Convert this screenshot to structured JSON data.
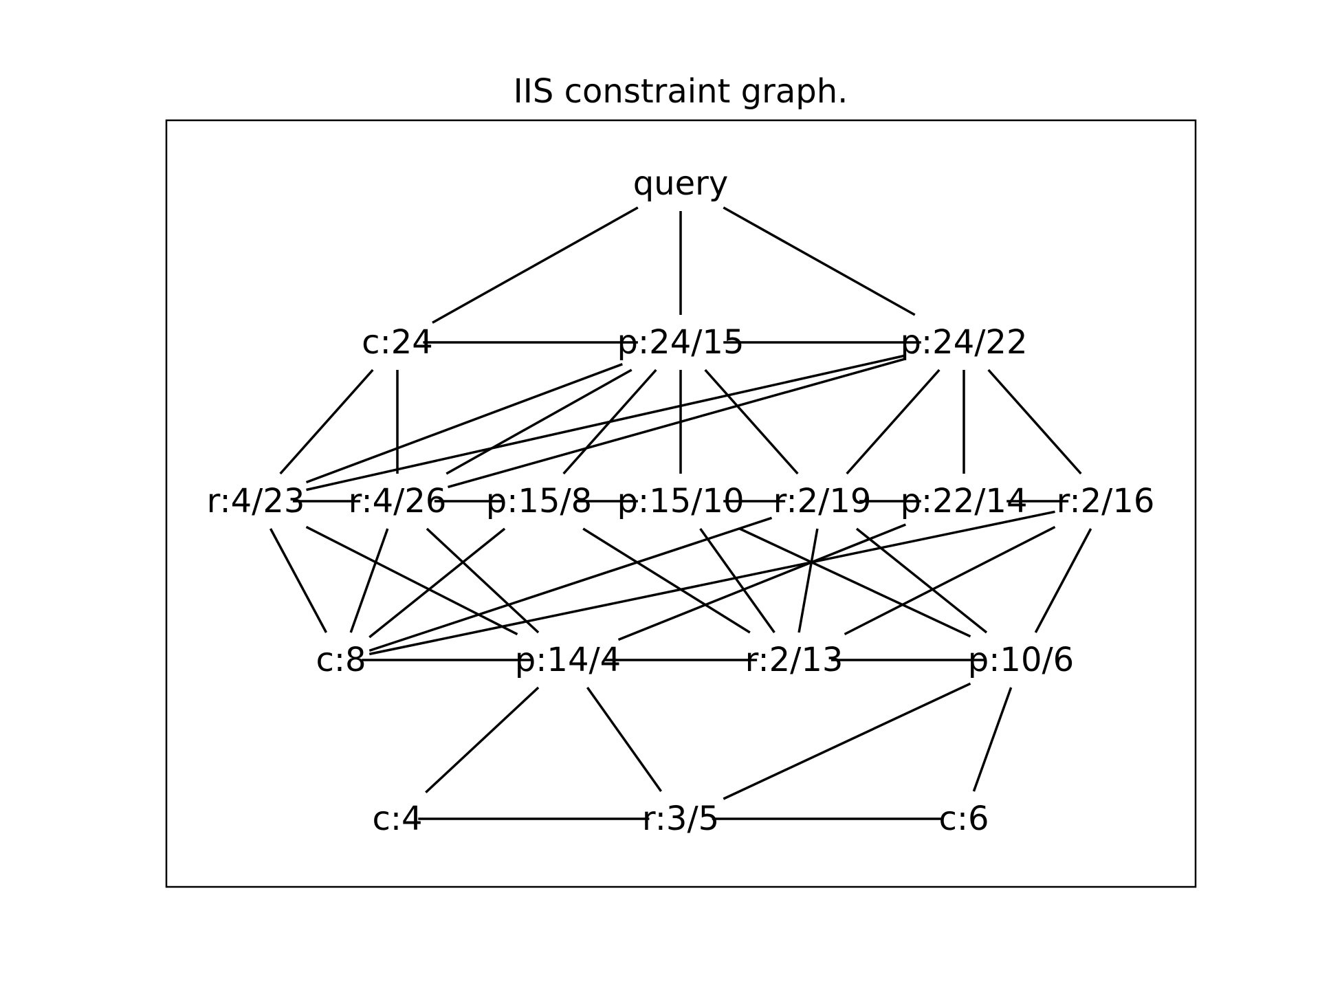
{
  "title": "IIS constraint graph.",
  "colors": {
    "background": "#ffffff",
    "line": "#000000",
    "text": "#000000"
  },
  "graph": {
    "nodes": [
      {
        "id": "query",
        "label": "query"
      },
      {
        "id": "c24",
        "label": "c:24"
      },
      {
        "id": "p24_15",
        "label": "p:24/15"
      },
      {
        "id": "p24_22",
        "label": "p:24/22"
      },
      {
        "id": "r4_23",
        "label": "r:4/23"
      },
      {
        "id": "r4_26",
        "label": "r:4/26"
      },
      {
        "id": "p15_8",
        "label": "p:15/8"
      },
      {
        "id": "p15_10",
        "label": "p:15/10"
      },
      {
        "id": "r2_19",
        "label": "r:2/19"
      },
      {
        "id": "p22_14",
        "label": "p:22/14"
      },
      {
        "id": "r2_16",
        "label": "r:2/16"
      },
      {
        "id": "c8",
        "label": "c:8"
      },
      {
        "id": "p14_4",
        "label": "p:14/4"
      },
      {
        "id": "r2_13",
        "label": "r:2/13"
      },
      {
        "id": "p10_6",
        "label": "p:10/6"
      },
      {
        "id": "c4",
        "label": "c:4"
      },
      {
        "id": "r3_5",
        "label": "r:3/5"
      },
      {
        "id": "c6",
        "label": "c:6"
      }
    ],
    "edges": [
      [
        "query",
        "c24"
      ],
      [
        "query",
        "p24_15"
      ],
      [
        "query",
        "p24_22"
      ],
      [
        "c24",
        "p24_15"
      ],
      [
        "p24_15",
        "p24_22"
      ],
      [
        "c24",
        "r4_23"
      ],
      [
        "c24",
        "r4_26"
      ],
      [
        "p24_15",
        "r4_23"
      ],
      [
        "p24_15",
        "r4_26"
      ],
      [
        "p24_15",
        "p15_8"
      ],
      [
        "p24_15",
        "p15_10"
      ],
      [
        "p24_15",
        "r2_19"
      ],
      [
        "p24_22",
        "r4_23"
      ],
      [
        "p24_22",
        "r4_26"
      ],
      [
        "p24_22",
        "r2_19"
      ],
      [
        "p24_22",
        "p22_14"
      ],
      [
        "p24_22",
        "r2_16"
      ],
      [
        "r4_23",
        "r4_26"
      ],
      [
        "r4_26",
        "p15_8"
      ],
      [
        "p15_8",
        "p15_10"
      ],
      [
        "p15_10",
        "r2_19"
      ],
      [
        "r2_19",
        "p22_14"
      ],
      [
        "p22_14",
        "r2_16"
      ],
      [
        "r4_23",
        "c8"
      ],
      [
        "r4_23",
        "p14_4"
      ],
      [
        "r4_26",
        "c8"
      ],
      [
        "r4_26",
        "p14_4"
      ],
      [
        "p15_8",
        "c8"
      ],
      [
        "p15_8",
        "r2_13"
      ],
      [
        "p15_10",
        "r2_13"
      ],
      [
        "p15_10",
        "p10_6"
      ],
      [
        "r2_19",
        "c8"
      ],
      [
        "r2_19",
        "r2_13"
      ],
      [
        "r2_19",
        "p10_6"
      ],
      [
        "p22_14",
        "p14_4"
      ],
      [
        "r2_16",
        "c8"
      ],
      [
        "r2_16",
        "r2_13"
      ],
      [
        "r2_16",
        "p10_6"
      ],
      [
        "c8",
        "p14_4"
      ],
      [
        "p14_4",
        "r2_13"
      ],
      [
        "r2_13",
        "p10_6"
      ],
      [
        "p14_4",
        "c4"
      ],
      [
        "p14_4",
        "r3_5"
      ],
      [
        "p10_6",
        "r3_5"
      ],
      [
        "p10_6",
        "c6"
      ],
      [
        "c4",
        "r3_5"
      ],
      [
        "r3_5",
        "c6"
      ]
    ]
  }
}
